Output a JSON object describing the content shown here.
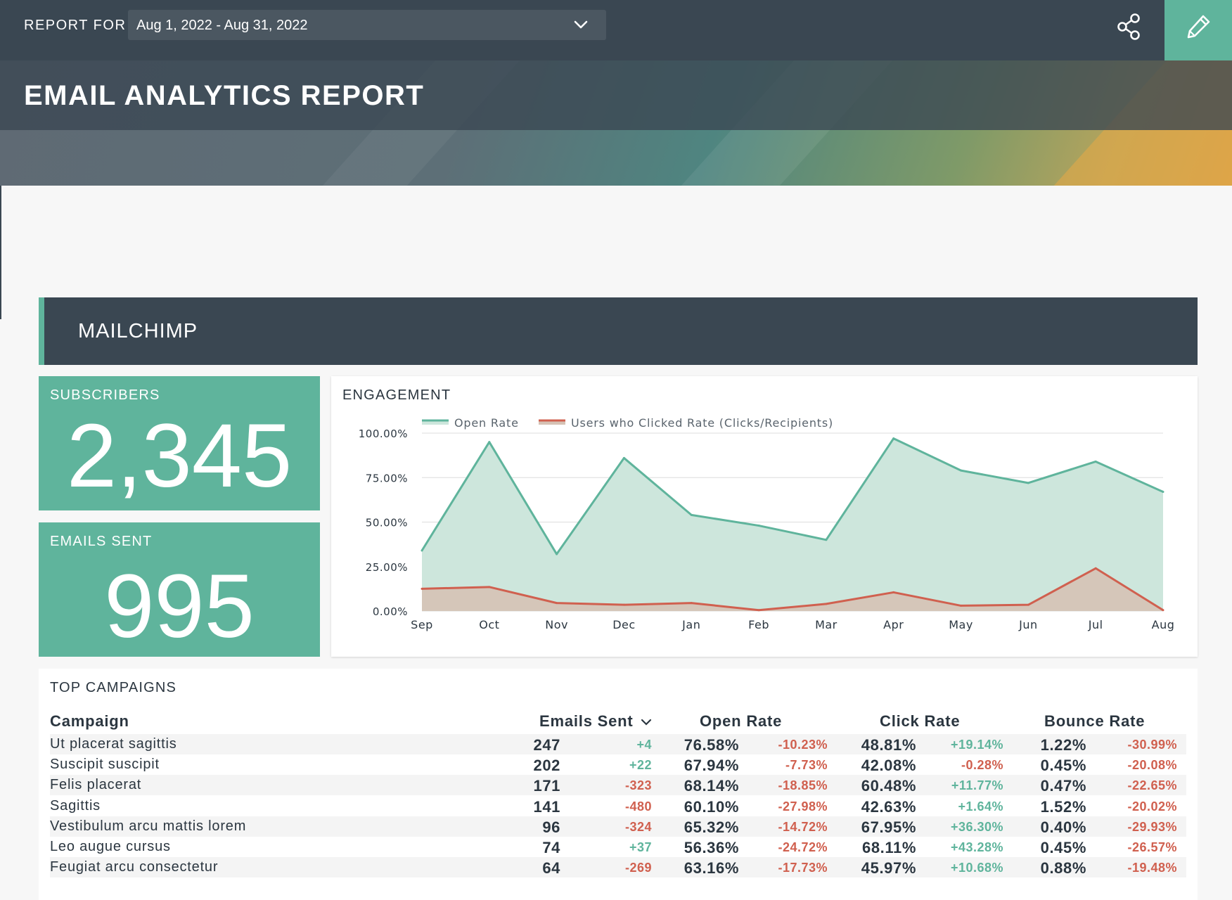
{
  "header": {
    "report_for_label": "REPORT FOR",
    "date_range": "Aug 1, 2022 - Aug 31, 2022",
    "title": "EMAIL ANALYTICS REPORT",
    "accent_color": "#5fb49c",
    "bar_color": "#3a4752"
  },
  "section": {
    "name": "MAILCHIMP"
  },
  "kpis": {
    "subscribers": {
      "label": "SUBSCRIBERS",
      "value": "2,345"
    },
    "emails_sent": {
      "label": "EMAILS SENT",
      "value": "995"
    }
  },
  "engagement": {
    "title": "ENGAGEMENT",
    "legend": [
      "Open Rate",
      "Users who Clicked Rate (Clicks/Recipients)"
    ],
    "y_ticks": [
      "100.00%",
      "75.00%",
      "50.00%",
      "25.00%",
      "0.00%"
    ]
  },
  "chart_data": {
    "type": "area",
    "title": "ENGAGEMENT",
    "categories": [
      "Sep",
      "Oct",
      "Nov",
      "Dec",
      "Jan",
      "Feb",
      "Mar",
      "Apr",
      "May",
      "Jun",
      "Jul",
      "Aug"
    ],
    "ylim": [
      0,
      100
    ],
    "y_unit": "%",
    "grid": true,
    "legend_position": "top-left",
    "series": [
      {
        "name": "Open Rate",
        "color": "#5fb49c",
        "fill": "#cde6dc",
        "values": [
          34,
          95,
          32,
          86,
          54,
          48,
          40,
          97,
          79,
          72,
          84,
          67
        ]
      },
      {
        "name": "Users who Clicked Rate (Clicks/Recipients)",
        "color": "#d0604f",
        "fill": "#d6c2b5",
        "values": [
          12.5,
          13.5,
          4.5,
          3.5,
          4.5,
          0.5,
          4,
          10.5,
          3,
          3.5,
          24,
          0.5
        ]
      }
    ]
  },
  "table": {
    "title": "TOP CAMPAIGNS",
    "headers": {
      "campaign": "Campaign",
      "emails_sent": "Emails Sent",
      "open_rate": "Open Rate",
      "click_rate": "Click Rate",
      "bounce_rate": "Bounce Rate"
    },
    "rows": [
      {
        "campaign": "Ut placerat sagittis",
        "sent": "247",
        "sent_delta": "+4",
        "open": "76.58%",
        "open_delta": "-10.23%",
        "click": "48.81%",
        "click_delta": "+19.14%",
        "bounce": "1.22%",
        "bounce_delta": "-30.99%"
      },
      {
        "campaign": "Suscipit suscipit",
        "sent": "202",
        "sent_delta": "+22",
        "open": "67.94%",
        "open_delta": "-7.73%",
        "click": "42.08%",
        "click_delta": "-0.28%",
        "bounce": "0.45%",
        "bounce_delta": "-20.08%"
      },
      {
        "campaign": "Felis placerat",
        "sent": "171",
        "sent_delta": "-323",
        "open": "68.14%",
        "open_delta": "-18.85%",
        "click": "60.48%",
        "click_delta": "+11.77%",
        "bounce": "0.47%",
        "bounce_delta": "-22.65%"
      },
      {
        "campaign": "Sagittis",
        "sent": "141",
        "sent_delta": "-480",
        "open": "60.10%",
        "open_delta": "-27.98%",
        "click": "42.63%",
        "click_delta": "+1.64%",
        "bounce": "1.52%",
        "bounce_delta": "-20.02%"
      },
      {
        "campaign": "Vestibulum arcu mattis lorem",
        "sent": "96",
        "sent_delta": "-324",
        "open": "65.32%",
        "open_delta": "-14.72%",
        "click": "67.95%",
        "click_delta": "+36.30%",
        "bounce": "0.40%",
        "bounce_delta": "-29.93%"
      },
      {
        "campaign": "Leo augue cursus",
        "sent": "74",
        "sent_delta": "+37",
        "open": "56.36%",
        "open_delta": "-24.72%",
        "click": "68.11%",
        "click_delta": "+43.28%",
        "bounce": "0.45%",
        "bounce_delta": "-26.57%"
      },
      {
        "campaign": "Feugiat arcu consectetur",
        "sent": "64",
        "sent_delta": "-269",
        "open": "63.16%",
        "open_delta": "-17.73%",
        "click": "45.97%",
        "click_delta": "+10.68%",
        "bounce": "0.88%",
        "bounce_delta": "-19.48%"
      }
    ]
  }
}
